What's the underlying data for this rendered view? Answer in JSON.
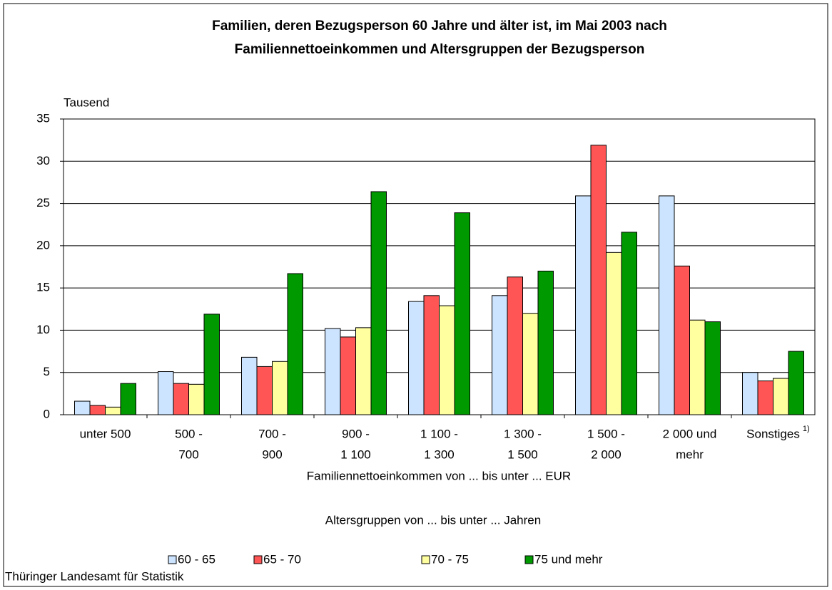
{
  "chart_data": {
    "type": "bar",
    "title": [
      "Familien, deren Bezugsperson 60 Jahre und älter ist, im Mai 2003 nach",
      "Familiennettoeinkommen und Altersgruppen der Bezugsperson"
    ],
    "y_unit": "Tausend",
    "x_label": "Familiennettoeinkommen von ... bis unter ... EUR",
    "legend_title": "Altersgruppen von ... bis unter ... Jahren",
    "source": "Thüringer Landesamt für Statistik",
    "categories": [
      [
        "unter 500"
      ],
      [
        "500 -",
        "700"
      ],
      [
        "700 -",
        "900"
      ],
      [
        "900 -",
        "1 100"
      ],
      [
        "1 100 -",
        "1 300"
      ],
      [
        "1 300 -",
        "1 500"
      ],
      [
        "1 500 -",
        "2 000"
      ],
      [
        "2 000 und",
        "mehr"
      ],
      [
        "Sonstiges"
      ]
    ],
    "last_category_note": "1)",
    "series": [
      {
        "name": "60 - 65",
        "color": "#cce4ff",
        "values": [
          1.6,
          5.1,
          6.8,
          10.2,
          13.4,
          14.1,
          25.9,
          25.9,
          5.0
        ]
      },
      {
        "name": "65 - 70",
        "color": "#ff5555",
        "values": [
          1.1,
          3.7,
          5.7,
          9.2,
          14.1,
          16.3,
          31.9,
          17.6,
          4.0
        ]
      },
      {
        "name": "70 - 75",
        "color": "#ffffa0",
        "values": [
          0.9,
          3.6,
          6.3,
          10.3,
          12.9,
          12.0,
          19.2,
          11.2,
          4.3
        ]
      },
      {
        "name": "75 und mehr",
        "color": "#009900",
        "values": [
          3.7,
          11.9,
          16.7,
          26.4,
          23.9,
          17.0,
          21.6,
          11.0,
          7.5
        ]
      }
    ],
    "ylim": [
      0,
      35
    ],
    "yticks": [
      0,
      5,
      10,
      15,
      20,
      25,
      30,
      35
    ],
    "grid": true
  }
}
